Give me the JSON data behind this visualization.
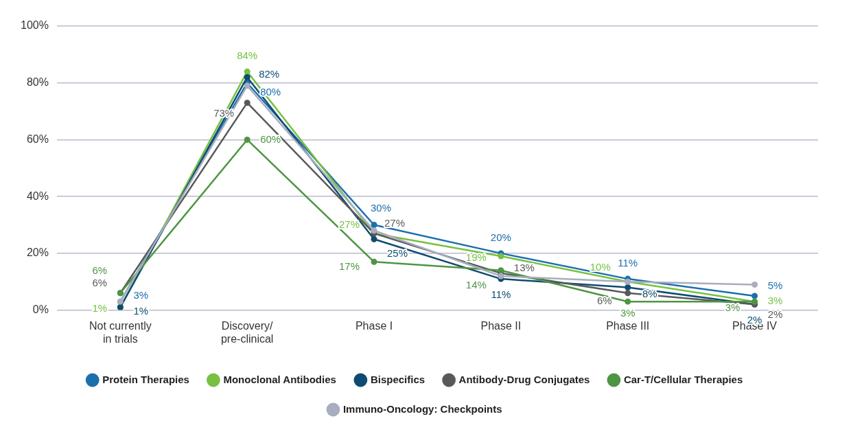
{
  "chart_data": {
    "type": "line",
    "categories": [
      "Not currently in trials",
      "Discovery/ pre-clinical",
      "Phase I",
      "Phase II",
      "Phase III",
      "Phase IV"
    ],
    "ylim": [
      0,
      100
    ],
    "yticks": [
      {
        "value": 0,
        "label": "0%"
      },
      {
        "value": 20,
        "label": "20%"
      },
      {
        "value": 40,
        "label": "40%"
      },
      {
        "value": 60,
        "label": "60%"
      },
      {
        "value": 80,
        "label": "80%"
      },
      {
        "value": 100,
        "label": "100%"
      }
    ],
    "grid": "y",
    "legend": "bottom",
    "marker": "circle",
    "line_style": "solid",
    "series": [
      {
        "name": "Protein Therapies",
        "color": "#1b6fad",
        "values": [
          3,
          80,
          30,
          20,
          11,
          5
        ],
        "value_labels": [
          "3%",
          "80%",
          "30%",
          "20%",
          "11%",
          "5%"
        ]
      },
      {
        "name": "Monoclonal Antibodies",
        "color": "#77c043",
        "values": [
          1,
          84,
          27,
          19,
          10,
          3
        ],
        "value_labels": [
          "1%",
          "84%",
          "27%",
          "19%",
          "10%",
          "3%"
        ]
      },
      {
        "name": "Bispecifics",
        "color": "#0d4c70",
        "values": [
          1,
          82,
          25,
          11,
          8,
          2
        ],
        "value_labels": [
          "1%",
          "82%",
          "25%",
          "11%",
          "8%",
          "2%"
        ]
      },
      {
        "name": "Antibody-Drug Conjugates",
        "color": "#58595b",
        "values": [
          6,
          73,
          27,
          13,
          6,
          2
        ],
        "value_labels": [
          "6%",
          "73%",
          "27%",
          "13%",
          "6%",
          "2%"
        ]
      },
      {
        "name": "Car-T/Cellular Therapies",
        "color": "#4e9543",
        "values": [
          6,
          60,
          17,
          14,
          3,
          3
        ],
        "value_labels": [
          "6%",
          "60%",
          "17%",
          "14%",
          "3%",
          "3%"
        ]
      },
      {
        "name": "Immuno-Oncology: Checkpoints",
        "color": "#a8adbf",
        "values": [
          3,
          79,
          28,
          12,
          10,
          9
        ]
      }
    ]
  }
}
